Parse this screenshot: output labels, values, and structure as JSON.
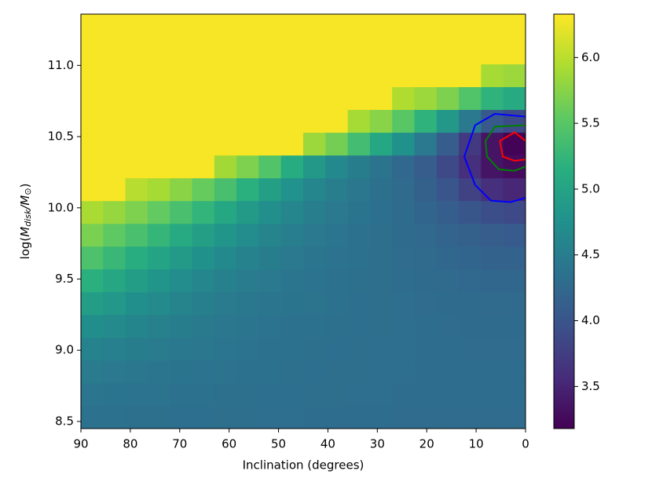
{
  "chart_data": {
    "type": "heatmap",
    "xlabel": "Inclination (degrees)",
    "ylabel": [
      "log(",
      "M",
      "disk",
      "/",
      "M",
      "⊙",
      ")"
    ],
    "xlim": [
      90,
      0
    ],
    "ylim": [
      8.45,
      11.36
    ],
    "xticks": [
      90,
      80,
      70,
      60,
      50,
      40,
      30,
      20,
      10,
      0
    ],
    "yticks": [
      8.5,
      {
        "value": 9,
        "label": "9.0"
      },
      9.5,
      {
        "value": 10,
        "label": "10.0"
      },
      10.5,
      {
        "value": 11,
        "label": "11.0"
      }
    ],
    "colormap": "viridis",
    "clim": [
      3.18,
      6.33
    ],
    "cticks": [
      3.5,
      {
        "value": 4,
        "label": "4.0"
      },
      4.5,
      {
        "value": 5,
        "label": "5.0"
      },
      5.5,
      {
        "value": 6,
        "label": "6.0"
      }
    ],
    "xbins": [
      90,
      85.5,
      81,
      76.5,
      72,
      67.5,
      63,
      58.5,
      54,
      49.5,
      45,
      40.5,
      36,
      31.5,
      27,
      22.5,
      18,
      13.5,
      9,
      4.5,
      0
    ],
    "ybins": [
      8.45,
      8.61,
      8.77,
      8.93,
      9.09,
      9.25,
      9.41,
      9.57,
      9.73,
      9.89,
      10.05,
      10.21,
      10.37,
      10.53,
      10.69,
      10.85,
      11.01,
      11.17,
      11.36
    ],
    "z": [
      [
        4.35,
        4.35,
        4.34,
        4.34,
        4.33,
        4.33,
        4.32,
        4.32,
        4.31,
        4.31,
        4.3,
        4.3,
        4.3,
        4.3,
        4.29,
        4.29,
        4.29,
        4.29,
        4.29,
        4.29
      ],
      [
        4.4,
        4.39,
        4.38,
        4.37,
        4.36,
        4.35,
        4.34,
        4.34,
        4.33,
        4.33,
        4.32,
        4.32,
        4.31,
        4.31,
        4.3,
        4.3,
        4.3,
        4.3,
        4.3,
        4.3
      ],
      [
        4.47,
        4.45,
        4.43,
        4.41,
        4.39,
        4.38,
        4.37,
        4.36,
        4.35,
        4.34,
        4.33,
        4.32,
        4.32,
        4.31,
        4.31,
        4.3,
        4.3,
        4.3,
        4.3,
        4.3
      ],
      [
        4.58,
        4.54,
        4.5,
        4.47,
        4.44,
        4.42,
        4.4,
        4.38,
        4.36,
        4.35,
        4.34,
        4.33,
        4.32,
        4.31,
        4.31,
        4.3,
        4.3,
        4.29,
        4.29,
        4.29
      ],
      [
        4.72,
        4.66,
        4.6,
        4.55,
        4.5,
        4.46,
        4.43,
        4.4,
        4.38,
        4.36,
        4.35,
        4.34,
        4.33,
        4.32,
        4.31,
        4.3,
        4.29,
        4.28,
        4.28,
        4.28
      ],
      [
        4.92,
        4.83,
        4.74,
        4.66,
        4.59,
        4.53,
        4.48,
        4.44,
        4.41,
        4.39,
        4.37,
        4.35,
        4.33,
        4.32,
        4.31,
        4.29,
        4.28,
        4.27,
        4.26,
        4.26
      ],
      [
        5.16,
        5.04,
        4.92,
        4.81,
        4.71,
        4.62,
        4.55,
        4.49,
        4.45,
        4.41,
        4.38,
        4.36,
        4.34,
        4.32,
        4.3,
        4.28,
        4.26,
        4.24,
        4.23,
        4.22
      ],
      [
        5.42,
        5.28,
        5.14,
        5.0,
        4.87,
        4.75,
        4.65,
        4.57,
        4.5,
        4.45,
        4.41,
        4.38,
        4.35,
        4.32,
        4.29,
        4.26,
        4.23,
        4.2,
        4.18,
        4.17
      ],
      [
        5.68,
        5.54,
        5.4,
        5.25,
        5.1,
        4.95,
        4.81,
        4.69,
        4.59,
        4.51,
        4.45,
        4.4,
        4.36,
        4.32,
        4.28,
        4.24,
        4.19,
        4.14,
        4.1,
        4.08
      ],
      [
        5.92,
        5.82,
        5.7,
        5.56,
        5.4,
        5.23,
        5.05,
        4.88,
        4.73,
        4.61,
        4.52,
        4.45,
        4.39,
        4.33,
        4.27,
        4.2,
        4.12,
        4.02,
        3.92,
        3.88
      ],
      [
        6.3,
        6.3,
        5.98,
        5.9,
        5.76,
        5.58,
        5.38,
        5.16,
        4.95,
        4.77,
        4.62,
        4.51,
        4.42,
        4.34,
        4.26,
        4.15,
        4.0,
        3.8,
        3.6,
        3.52
      ],
      [
        6.3,
        6.3,
        6.3,
        6.3,
        6.3,
        6.3,
        5.88,
        5.7,
        5.45,
        5.12,
        4.85,
        4.65,
        4.5,
        4.37,
        4.25,
        4.1,
        3.88,
        3.6,
        3.35,
        3.28
      ],
      [
        6.3,
        6.3,
        6.3,
        6.3,
        6.3,
        6.3,
        6.3,
        6.3,
        6.3,
        6.3,
        5.85,
        5.65,
        5.35,
        5.05,
        4.75,
        4.45,
        4.1,
        3.7,
        3.35,
        3.2
      ],
      [
        6.3,
        6.3,
        6.3,
        6.3,
        6.3,
        6.3,
        6.3,
        6.3,
        6.3,
        6.3,
        6.3,
        6.3,
        5.9,
        5.75,
        5.5,
        5.2,
        4.85,
        4.45,
        4.05,
        3.9
      ],
      [
        6.3,
        6.3,
        6.3,
        6.3,
        6.3,
        6.3,
        6.3,
        6.3,
        6.3,
        6.3,
        6.3,
        6.3,
        6.3,
        6.3,
        5.95,
        5.85,
        5.7,
        5.45,
        5.2,
        5.1
      ],
      [
        6.3,
        6.3,
        6.3,
        6.3,
        6.3,
        6.3,
        6.3,
        6.3,
        6.3,
        6.3,
        6.3,
        6.3,
        6.3,
        6.3,
        6.3,
        6.3,
        6.3,
        6.3,
        5.9,
        5.85
      ],
      [
        6.3,
        6.3,
        6.3,
        6.3,
        6.3,
        6.3,
        6.3,
        6.3,
        6.3,
        6.3,
        6.3,
        6.3,
        6.3,
        6.3,
        6.3,
        6.3,
        6.3,
        6.3,
        6.3,
        6.3
      ],
      [
        6.3,
        6.3,
        6.3,
        6.3,
        6.3,
        6.3,
        6.3,
        6.3,
        6.3,
        6.3,
        6.3,
        6.3,
        6.3,
        6.3,
        6.3,
        6.3,
        6.3,
        6.3,
        6.3,
        6.3
      ]
    ],
    "contours": [
      {
        "color": "#0000ff",
        "x": [
          0,
          6.2,
          10.2,
          12.4,
          10.2,
          7,
          3,
          0
        ],
        "y": [
          10.64,
          10.66,
          10.58,
          10.36,
          10.16,
          10.05,
          10.04,
          10.07
        ]
      },
      {
        "color": "#008000",
        "x": [
          0,
          6.2,
          8.1,
          7.8,
          5.4,
          2.2,
          0
        ],
        "y": [
          10.58,
          10.57,
          10.47,
          10.36,
          10.27,
          10.26,
          10.29
        ]
      },
      {
        "color": "#ff0000",
        "x": [
          0,
          2.2,
          5.2,
          4.6,
          2.2,
          0
        ],
        "y": [
          10.47,
          10.53,
          10.47,
          10.36,
          10.33,
          10.34
        ]
      }
    ]
  }
}
